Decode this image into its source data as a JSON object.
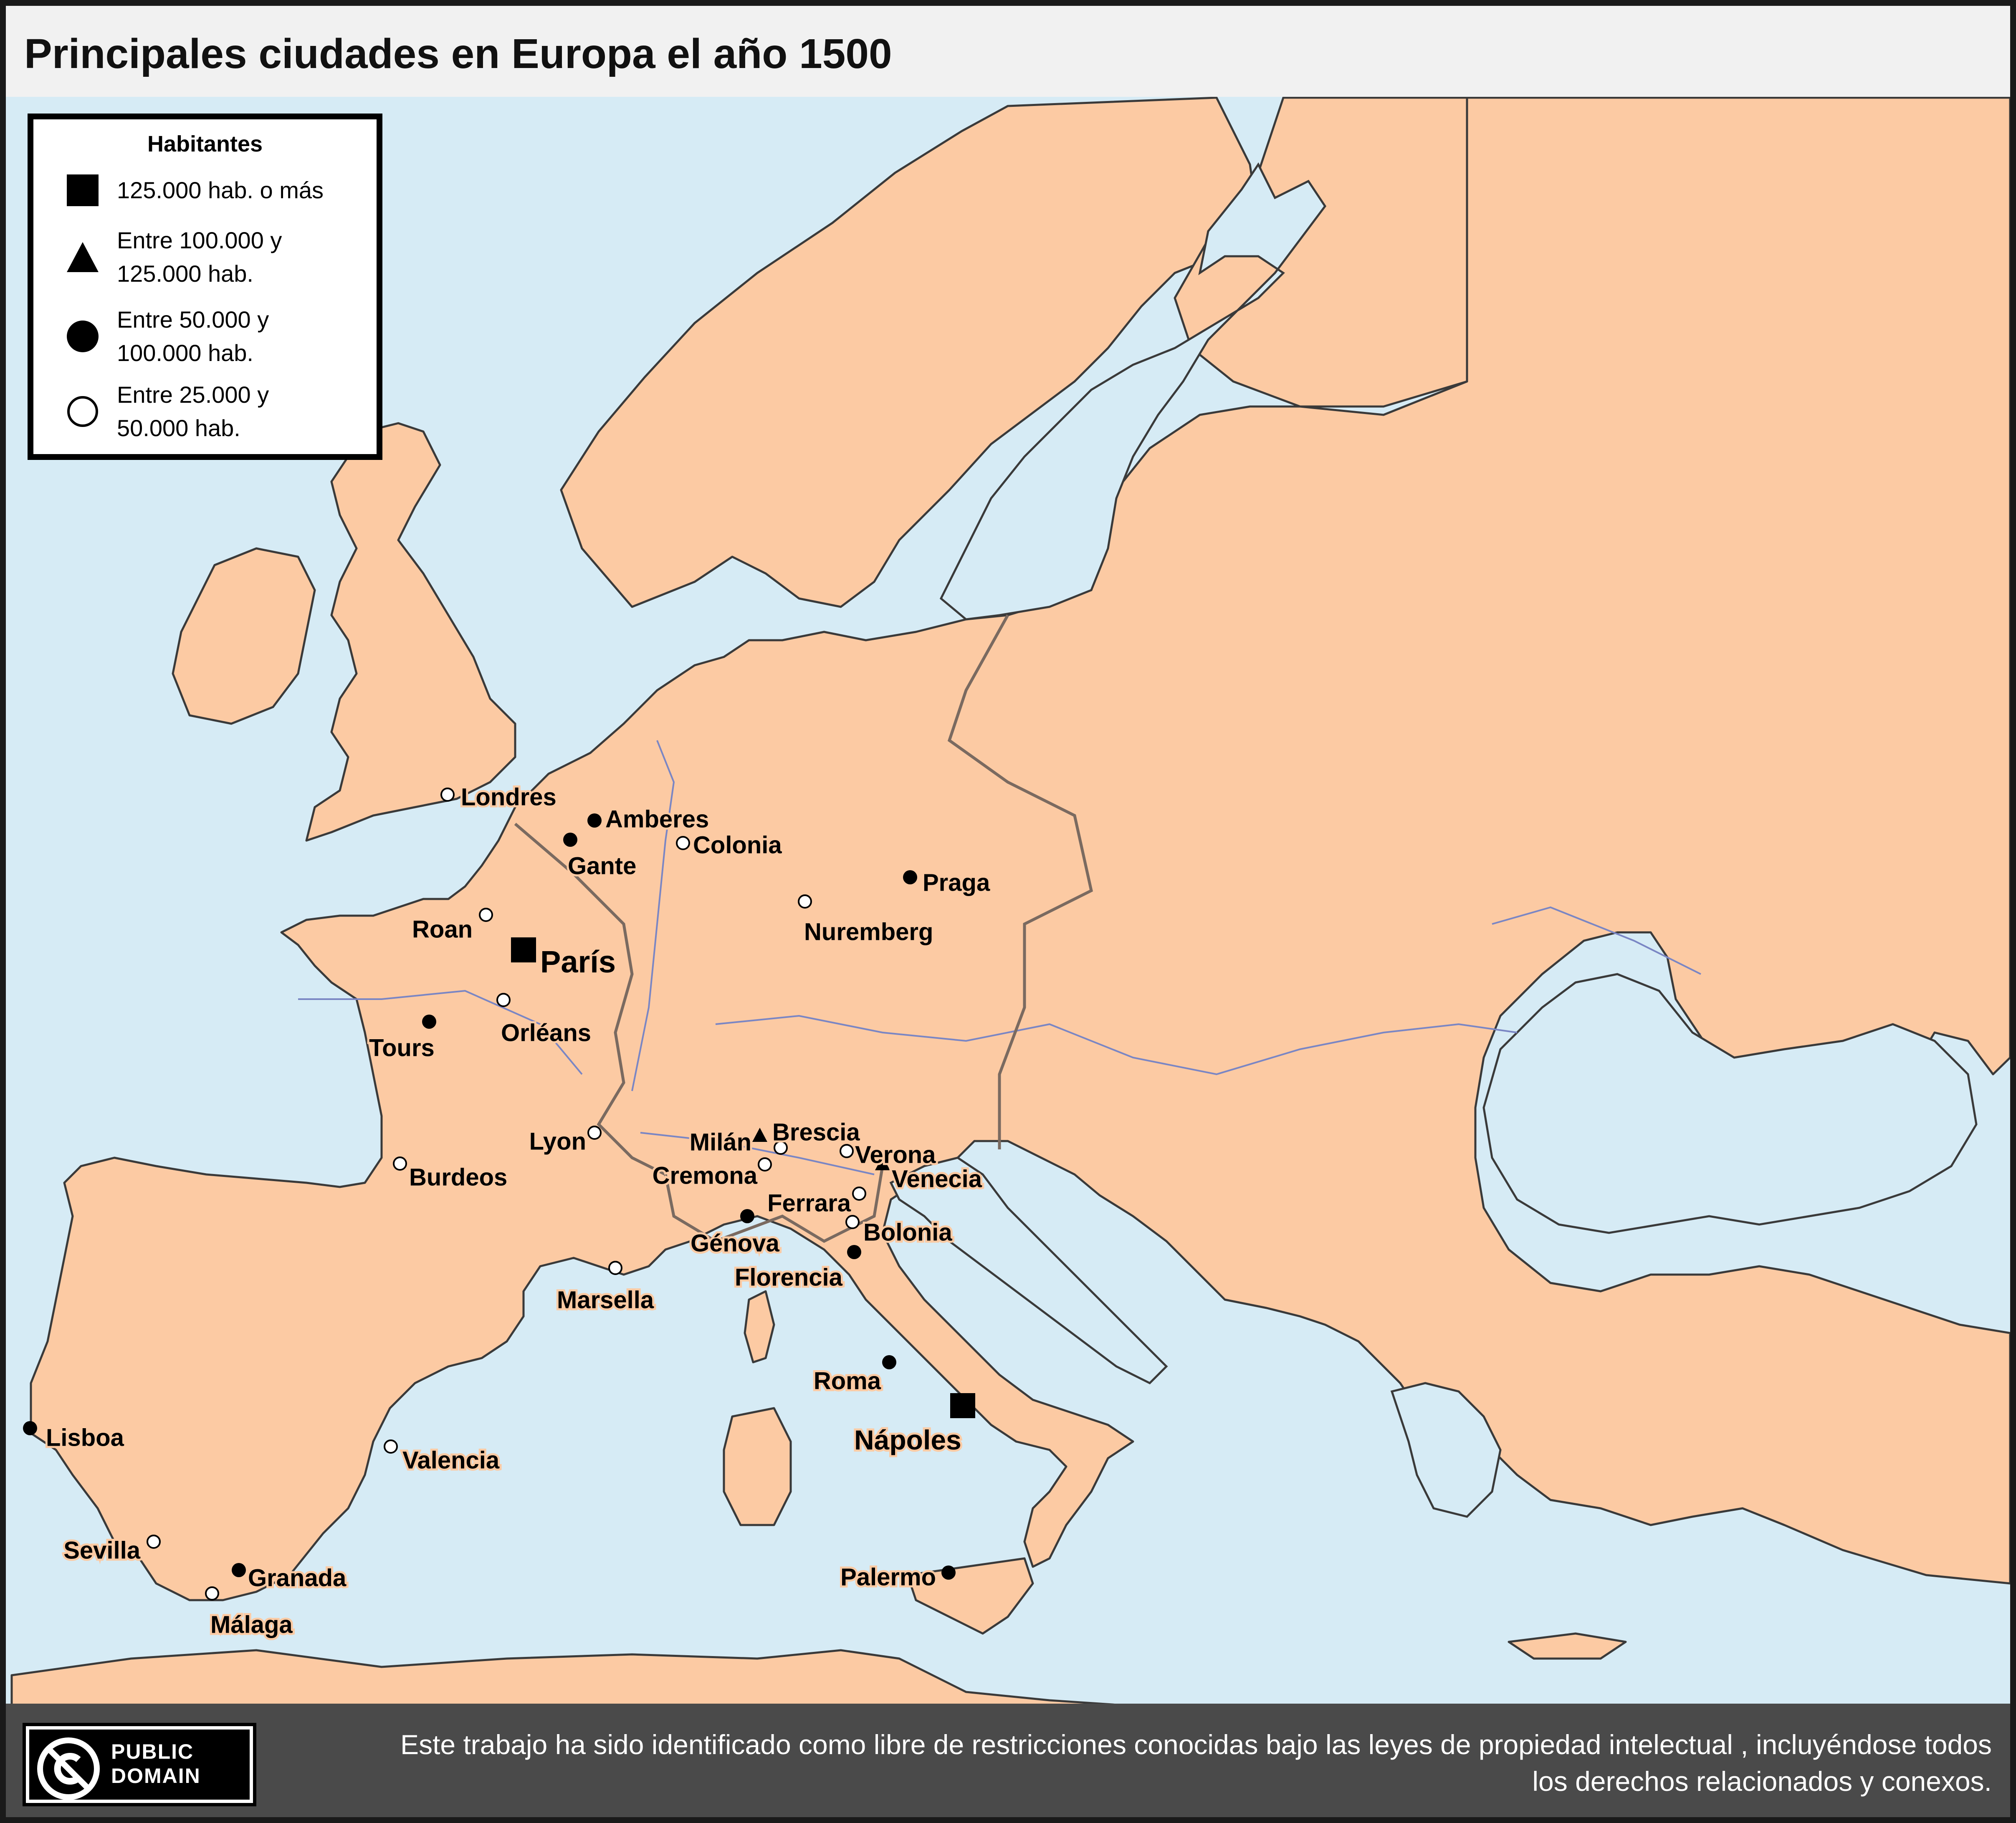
{
  "title": "Principales ciudades en Europa el año 1500",
  "colors": {
    "sea": "#d6ebf5",
    "land": "#fccaa3",
    "border": "#3a3a3a",
    "river": "#7a86c4",
    "footer": "#4a4a4a"
  },
  "legend": {
    "title": "Habitantes",
    "items": [
      {
        "symbol": "square",
        "label": "125.000 hab. o más"
      },
      {
        "symbol": "triangle",
        "label": "Entre 100.000 y\n125.000 hab."
      },
      {
        "symbol": "filled-circle",
        "label": "Entre 50.000 y\n100.000 hab."
      },
      {
        "symbol": "open-circle",
        "label": "Entre 25.000 y\n50.000 hab."
      }
    ]
  },
  "cities": [
    {
      "name": "Londres",
      "symbol": "open-circle"
    },
    {
      "name": "Amberes",
      "symbol": "filled-circle"
    },
    {
      "name": "Gante",
      "symbol": "filled-circle"
    },
    {
      "name": "Colonia",
      "symbol": "open-circle"
    },
    {
      "name": "Praga",
      "symbol": "filled-circle"
    },
    {
      "name": "Roan",
      "symbol": "open-circle"
    },
    {
      "name": "París",
      "symbol": "square"
    },
    {
      "name": "Nuremberg",
      "symbol": "open-circle"
    },
    {
      "name": "Tours",
      "symbol": "filled-circle"
    },
    {
      "name": "Orléans",
      "symbol": "open-circle"
    },
    {
      "name": "Lyon",
      "symbol": "open-circle"
    },
    {
      "name": "Burdeos",
      "symbol": "open-circle"
    },
    {
      "name": "Milán",
      "symbol": "triangle"
    },
    {
      "name": "Brescia",
      "symbol": "open-circle"
    },
    {
      "name": "Verona",
      "symbol": "open-circle"
    },
    {
      "name": "Venecia",
      "symbol": "triangle"
    },
    {
      "name": "Cremona",
      "symbol": "open-circle"
    },
    {
      "name": "Ferrara",
      "symbol": "open-circle"
    },
    {
      "name": "Bolonia",
      "symbol": "open-circle"
    },
    {
      "name": "Génova",
      "symbol": "filled-circle"
    },
    {
      "name": "Florencia",
      "symbol": "filled-circle"
    },
    {
      "name": "Marsella",
      "symbol": "open-circle"
    },
    {
      "name": "Roma",
      "symbol": "filled-circle"
    },
    {
      "name": "Nápoles",
      "symbol": "square"
    },
    {
      "name": "Lisboa",
      "symbol": "filled-circle"
    },
    {
      "name": "Valencia",
      "symbol": "open-circle"
    },
    {
      "name": "Sevilla",
      "symbol": "open-circle"
    },
    {
      "name": "Granada",
      "symbol": "filled-circle"
    },
    {
      "name": "Málaga",
      "symbol": "open-circle"
    },
    {
      "name": "Palermo",
      "symbol": "filled-circle"
    }
  ],
  "footer": {
    "badge_text": "PUBLIC\nDOMAIN",
    "notice": "Este trabajo ha sido identificado como libre de restricciones conocidas bajo las leyes de propiedad intelectual , incluyéndose todos los derechos relacionados y conexos."
  }
}
